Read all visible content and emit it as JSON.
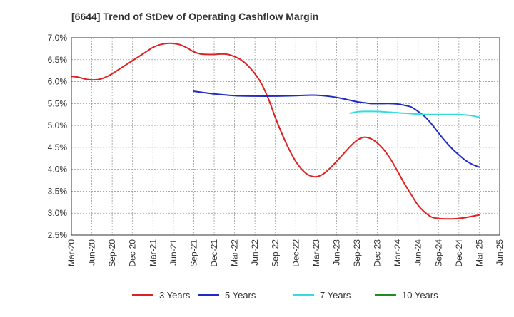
{
  "chart_data": {
    "type": "line",
    "title": "[6644]  Trend of StDev of Operating Cashflow Margin",
    "xlabel": "",
    "ylabel": "",
    "ylim": [
      2.5,
      7.0
    ],
    "yticks": [
      "7.0%",
      "6.5%",
      "6.0%",
      "5.5%",
      "5.0%",
      "4.5%",
      "4.0%",
      "3.5%",
      "3.0%",
      "2.5%"
    ],
    "ytick_values": [
      7.0,
      6.5,
      6.0,
      5.5,
      5.0,
      4.5,
      4.0,
      3.5,
      3.0,
      2.5
    ],
    "xticks": [
      "Mar-20",
      "Jun-20",
      "Sep-20",
      "Dec-20",
      "Mar-21",
      "Jun-21",
      "Sep-21",
      "Dec-21",
      "Mar-22",
      "Jun-22",
      "Sep-22",
      "Dec-22",
      "Mar-23",
      "Jun-23",
      "Sep-23",
      "Dec-23",
      "Mar-24",
      "Jun-24",
      "Sep-24",
      "Dec-24",
      "Mar-25",
      "Jun-25"
    ],
    "grid": true,
    "legend_position": "bottom",
    "series": [
      {
        "name": "3 Years",
        "color": "#dd2222",
        "x": [
          "Mar-20",
          "Apr-20",
          "May-20",
          "Jun-20",
          "Jul-20",
          "Aug-20",
          "Sep-20",
          "Oct-20",
          "Nov-20",
          "Dec-20",
          "Jan-21",
          "Feb-21",
          "Mar-21",
          "Apr-21",
          "May-21",
          "Jun-21",
          "Jul-21",
          "Aug-21",
          "Sep-21",
          "Oct-21",
          "Nov-21",
          "Dec-21",
          "Jan-22",
          "Feb-22",
          "Mar-22",
          "Apr-22",
          "May-22",
          "Jun-22",
          "Jul-22",
          "Aug-22",
          "Sep-22",
          "Oct-22",
          "Nov-22",
          "Dec-22",
          "Jan-23",
          "Feb-23",
          "Mar-23",
          "Apr-23",
          "May-23",
          "Jun-23",
          "Jul-23",
          "Aug-23",
          "Sep-23",
          "Oct-23",
          "Nov-23",
          "Dec-23",
          "Jan-24",
          "Feb-24",
          "Mar-24",
          "Apr-24",
          "May-24",
          "Jun-24",
          "Jul-24",
          "Aug-24",
          "Sep-24",
          "Oct-24",
          "Nov-24",
          "Dec-24",
          "Jan-25",
          "Feb-25",
          "Mar-25"
        ],
        "values": [
          6.12,
          6.1,
          6.06,
          6.04,
          6.05,
          6.1,
          6.18,
          6.28,
          6.38,
          6.48,
          6.58,
          6.68,
          6.78,
          6.84,
          6.87,
          6.87,
          6.84,
          6.77,
          6.68,
          6.63,
          6.62,
          6.62,
          6.63,
          6.62,
          6.57,
          6.49,
          6.36,
          6.18,
          5.94,
          5.6,
          5.18,
          4.8,
          4.46,
          4.18,
          3.98,
          3.86,
          3.83,
          3.89,
          4.02,
          4.18,
          4.35,
          4.52,
          4.66,
          4.73,
          4.7,
          4.6,
          4.44,
          4.22,
          3.95,
          3.67,
          3.42,
          3.18,
          3.02,
          2.91,
          2.88,
          2.87,
          2.87,
          2.88,
          2.9,
          2.93,
          2.96
        ]
      },
      {
        "name": "5 Years",
        "color": "#1f2bc4",
        "x": [
          "Sep-21",
          "Dec-21",
          "Mar-22",
          "Jun-22",
          "Sep-22",
          "Dec-22",
          "Mar-23",
          "Jun-23",
          "Sep-23",
          "Oct-23",
          "Nov-23",
          "Dec-23",
          "Jan-24",
          "Feb-24",
          "Mar-24",
          "Apr-24",
          "May-24",
          "Jun-24",
          "Jul-24",
          "Aug-24",
          "Sep-24",
          "Oct-24",
          "Nov-24",
          "Dec-24",
          "Jan-25",
          "Feb-25",
          "Mar-25"
        ],
        "values": [
          5.78,
          5.72,
          5.68,
          5.67,
          5.67,
          5.68,
          5.69,
          5.64,
          5.54,
          5.52,
          5.5,
          5.5,
          5.5,
          5.5,
          5.49,
          5.46,
          5.42,
          5.32,
          5.2,
          5.03,
          4.83,
          4.64,
          4.47,
          4.33,
          4.2,
          4.11,
          4.05
        ]
      },
      {
        "name": "7 Years",
        "color": "#33dddd",
        "x": [
          "Aug-23",
          "Sep-23",
          "Oct-23",
          "Nov-23",
          "Dec-23",
          "Jan-24",
          "Feb-24",
          "Mar-24",
          "Apr-24",
          "May-24",
          "Jun-24",
          "Jul-24",
          "Aug-24",
          "Sep-24",
          "Oct-24",
          "Nov-24",
          "Dec-24",
          "Jan-25",
          "Feb-25",
          "Mar-25"
        ],
        "values": [
          5.28,
          5.31,
          5.32,
          5.32,
          5.32,
          5.31,
          5.3,
          5.29,
          5.28,
          5.27,
          5.26,
          5.25,
          5.25,
          5.25,
          5.25,
          5.25,
          5.25,
          5.24,
          5.22,
          5.19
        ]
      },
      {
        "name": "10 Years",
        "color": "#228b22",
        "x": [],
        "values": []
      }
    ]
  }
}
